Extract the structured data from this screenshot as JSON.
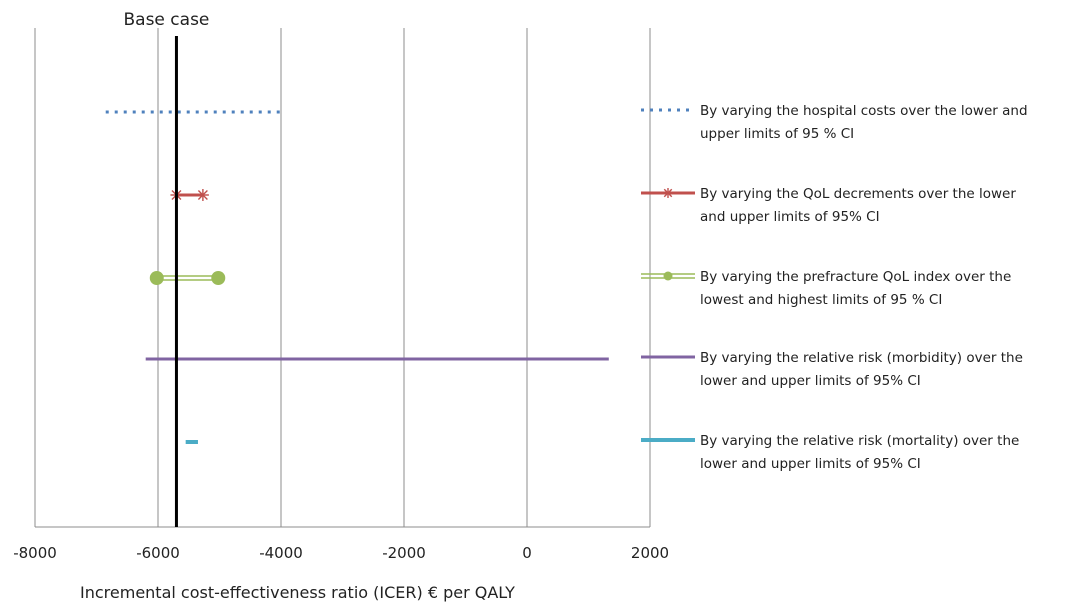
{
  "chart_data": {
    "type": "tornado",
    "title": "",
    "xlabel": "Incremental cost-effectiveness ratio (ICER) € per QALY",
    "ylabel": "",
    "xlim": [
      -8000,
      2000
    ],
    "xticks": [
      -8000,
      -6000,
      -4000,
      -2000,
      0,
      2000
    ],
    "xtick_labels": [
      "-8000",
      "-6000",
      "-4000",
      "-2000",
      "0",
      "2000"
    ],
    "grid": "vertical",
    "legend_position": "right",
    "base_case": {
      "label": "Base case",
      "value": -5700
    },
    "series": [
      {
        "name": "By varying the hospital costs over the lower and upper limits of  95 % CI",
        "low": -6850,
        "high": -3950,
        "style": "dotted",
        "color": "#4f81bd"
      },
      {
        "name": "By varying the QoL decrements over the lower and upper limits of 95% CI",
        "low": -5700,
        "high": -5270,
        "style": "line-star",
        "color": "#c0504d"
      },
      {
        "name": "By varying the prefracture  QoL index over  the lowest and highest limits of 95 % CI",
        "low": -6020,
        "high": -5020,
        "style": "double-line-circle",
        "color": "#9bbb59"
      },
      {
        "name": "By varying the relative risk (morbidity) over the lower and upper limits of 95% CI",
        "low": -6200,
        "high": 1330,
        "style": "solid",
        "color": "#8064a2"
      },
      {
        "name": "By varying the relative risk (mortality) over the lower and upper limits of 95% CI",
        "low": -5550,
        "high": -5350,
        "style": "solid-thick",
        "color": "#4bacc6"
      }
    ]
  },
  "legend": {
    "items": [
      {
        "line1": "By varying the hospital costs over the lower and",
        "line2": "upper limits of  95 % CI"
      },
      {
        "line1": "By varying the QoL decrements over the lower",
        "line2": "and upper limits of 95% CI"
      },
      {
        "line1": "By varying the prefracture  QoL index over  the",
        "line2": "lowest and highest limits of 95 % CI"
      },
      {
        "line1": "By varying the relative risk (morbidity) over the",
        "line2": "lower and upper limits of 95% CI"
      },
      {
        "line1": "By varying the relative risk (mortality) over the",
        "line2": "lower and upper limits of 95% CI"
      }
    ]
  }
}
